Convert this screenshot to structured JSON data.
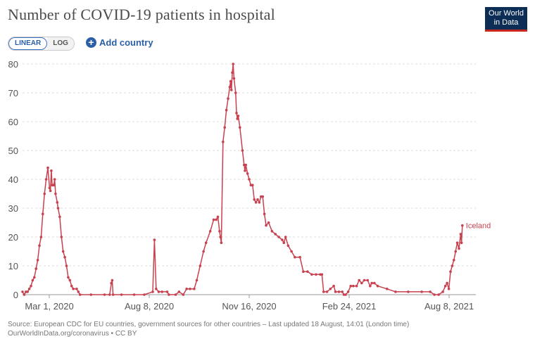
{
  "header": {
    "title": "Number of COVID-19 patients in hospital"
  },
  "logo": {
    "line1": "Our World",
    "line2": "in Data"
  },
  "controls": {
    "linear_label": "LINEAR",
    "log_label": "LOG",
    "add_country_label": "Add country"
  },
  "footer": {
    "source_line": "Source: European CDC for EU countries, government sources for other countries – Last updated 18 August, 14:01 (London time)",
    "url_line": "OurWorldInData.org/coronavirus • CC BY"
  },
  "colors": {
    "series": "#c8414f",
    "grid": "#dddddd",
    "logo_bg": "#0b2d56",
    "logo_accent": "#ce261e",
    "link": "#2a5fa8"
  },
  "chart_data": {
    "type": "line",
    "title": "Number of COVID-19 patients in hospital",
    "xlabel": "",
    "ylabel": "",
    "ylim": [
      0,
      80
    ],
    "yticks": [
      0,
      10,
      20,
      30,
      40,
      50,
      60,
      70,
      80
    ],
    "xticks": [
      "Mar 1, 2020",
      "Aug 8, 2020",
      "Nov 16, 2020",
      "Feb 24, 2021",
      "Aug 8, 2021"
    ],
    "xlim": [
      "2020-02-29",
      "2021-08-18"
    ],
    "grid": true,
    "series": [
      {
        "name": "Iceland",
        "points": [
          [
            "2020-02-29",
            1
          ],
          [
            "2020-03-02",
            0
          ],
          [
            "2020-03-04",
            1
          ],
          [
            "2020-03-06",
            1
          ],
          [
            "2020-03-08",
            2
          ],
          [
            "2020-03-10",
            3
          ],
          [
            "2020-03-12",
            5
          ],
          [
            "2020-03-14",
            6
          ],
          [
            "2020-03-16",
            9
          ],
          [
            "2020-03-18",
            12
          ],
          [
            "2020-03-20",
            17
          ],
          [
            "2020-03-22",
            20
          ],
          [
            "2020-03-24",
            28
          ],
          [
            "2020-03-26",
            35
          ],
          [
            "2020-03-28",
            40
          ],
          [
            "2020-03-30",
            44
          ],
          [
            "2020-04-01",
            37
          ],
          [
            "2020-04-02",
            36
          ],
          [
            "2020-04-03",
            43
          ],
          [
            "2020-04-04",
            38
          ],
          [
            "2020-04-06",
            38
          ],
          [
            "2020-04-07",
            40
          ],
          [
            "2020-04-08",
            35
          ],
          [
            "2020-04-10",
            32
          ],
          [
            "2020-04-11",
            30
          ],
          [
            "2020-04-13",
            27
          ],
          [
            "2020-04-15",
            20
          ],
          [
            "2020-04-17",
            15
          ],
          [
            "2020-04-19",
            13
          ],
          [
            "2020-04-21",
            10
          ],
          [
            "2020-04-23",
            6
          ],
          [
            "2020-04-25",
            5
          ],
          [
            "2020-04-27",
            3
          ],
          [
            "2020-04-29",
            2
          ],
          [
            "2020-05-03",
            2
          ],
          [
            "2020-05-05",
            1
          ],
          [
            "2020-05-07",
            0
          ],
          [
            "2020-05-20",
            0
          ],
          [
            "2020-06-05",
            0
          ],
          [
            "2020-06-11",
            0
          ],
          [
            "2020-06-13",
            4
          ],
          [
            "2020-06-14",
            5
          ],
          [
            "2020-06-15",
            0
          ],
          [
            "2020-06-25",
            0
          ],
          [
            "2020-07-10",
            0
          ],
          [
            "2020-07-22",
            0
          ],
          [
            "2020-08-01",
            1
          ],
          [
            "2020-08-03",
            19
          ],
          [
            "2020-08-05",
            2
          ],
          [
            "2020-08-08",
            1
          ],
          [
            "2020-08-12",
            1
          ],
          [
            "2020-08-18",
            1
          ],
          [
            "2020-08-20",
            0
          ],
          [
            "2020-08-28",
            0
          ],
          [
            "2020-09-01",
            1
          ],
          [
            "2020-09-06",
            0
          ],
          [
            "2020-09-10",
            2
          ],
          [
            "2020-09-14",
            2
          ],
          [
            "2020-09-19",
            2
          ],
          [
            "2020-09-22",
            5
          ],
          [
            "2020-09-26",
            10
          ],
          [
            "2020-09-30",
            15
          ],
          [
            "2020-10-03",
            18
          ],
          [
            "2020-10-08",
            22
          ],
          [
            "2020-10-12",
            26
          ],
          [
            "2020-10-15",
            26
          ],
          [
            "2020-10-17",
            27
          ],
          [
            "2020-10-19",
            22
          ],
          [
            "2020-10-20",
            20
          ],
          [
            "2020-10-21",
            18
          ],
          [
            "2020-10-23",
            53
          ],
          [
            "2020-10-25",
            58
          ],
          [
            "2020-10-27",
            64
          ],
          [
            "2020-10-29",
            68
          ],
          [
            "2020-10-31",
            72
          ],
          [
            "2020-11-01",
            74
          ],
          [
            "2020-11-02",
            71
          ],
          [
            "2020-11-03",
            77
          ],
          [
            "2020-11-04",
            80
          ],
          [
            "2020-11-05",
            75
          ],
          [
            "2020-11-07",
            70
          ],
          [
            "2020-11-08",
            63
          ],
          [
            "2020-11-09",
            61
          ],
          [
            "2020-11-10",
            62
          ],
          [
            "2020-11-12",
            58
          ],
          [
            "2020-11-15",
            50
          ],
          [
            "2020-11-17",
            45
          ],
          [
            "2020-11-18",
            43
          ],
          [
            "2020-11-19",
            45
          ],
          [
            "2020-11-21",
            42
          ],
          [
            "2020-11-23",
            40
          ],
          [
            "2020-11-25",
            38
          ],
          [
            "2020-11-27",
            38
          ],
          [
            "2020-11-29",
            33
          ],
          [
            "2020-12-01",
            32
          ],
          [
            "2020-12-03",
            33
          ],
          [
            "2020-12-05",
            32
          ],
          [
            "2020-12-07",
            34
          ],
          [
            "2020-12-09",
            34
          ],
          [
            "2020-12-11",
            28
          ],
          [
            "2020-12-13",
            24
          ],
          [
            "2020-12-16",
            25
          ],
          [
            "2020-12-20",
            22
          ],
          [
            "2020-12-24",
            21
          ],
          [
            "2020-12-28",
            20
          ],
          [
            "2021-01-01",
            19
          ],
          [
            "2021-01-03",
            18
          ],
          [
            "2021-01-05",
            20
          ],
          [
            "2021-01-08",
            17
          ],
          [
            "2021-01-12",
            15
          ],
          [
            "2021-01-16",
            13
          ],
          [
            "2021-01-22",
            13
          ],
          [
            "2021-01-26",
            8
          ],
          [
            "2021-01-31",
            8
          ],
          [
            "2021-02-05",
            7
          ],
          [
            "2021-02-10",
            7
          ],
          [
            "2021-02-15",
            7
          ],
          [
            "2021-02-17",
            7
          ],
          [
            "2021-02-19",
            1
          ],
          [
            "2021-02-23",
            1
          ],
          [
            "2021-02-27",
            2
          ],
          [
            "2021-03-03",
            3
          ],
          [
            "2021-03-05",
            1
          ],
          [
            "2021-03-09",
            1
          ],
          [
            "2021-03-13",
            1
          ],
          [
            "2021-03-15",
            0
          ],
          [
            "2021-03-17",
            0
          ],
          [
            "2021-03-20",
            1
          ],
          [
            "2021-03-23",
            3
          ],
          [
            "2021-03-26",
            3
          ],
          [
            "2021-03-30",
            3
          ],
          [
            "2021-04-02",
            5
          ],
          [
            "2021-04-05",
            4
          ],
          [
            "2021-04-08",
            5
          ],
          [
            "2021-04-12",
            5
          ],
          [
            "2021-04-15",
            3
          ],
          [
            "2021-04-17",
            4
          ],
          [
            "2021-04-20",
            4
          ],
          [
            "2021-04-24",
            3
          ],
          [
            "2021-05-05",
            2
          ],
          [
            "2021-05-15",
            1
          ],
          [
            "2021-05-30",
            1
          ],
          [
            "2021-06-15",
            1
          ],
          [
            "2021-06-25",
            1
          ],
          [
            "2021-06-30",
            0
          ],
          [
            "2021-07-05",
            0
          ],
          [
            "2021-07-10",
            1
          ],
          [
            "2021-07-13",
            3
          ],
          [
            "2021-07-15",
            4
          ],
          [
            "2021-07-17",
            2
          ],
          [
            "2021-07-19",
            8
          ],
          [
            "2021-07-21",
            10
          ],
          [
            "2021-07-23",
            12
          ],
          [
            "2021-07-25",
            15
          ],
          [
            "2021-07-27",
            18
          ],
          [
            "2021-07-29",
            16
          ],
          [
            "2021-07-31",
            21
          ],
          [
            "2021-08-01",
            18
          ],
          [
            "2021-08-02",
            24
          ]
        ]
      }
    ]
  }
}
